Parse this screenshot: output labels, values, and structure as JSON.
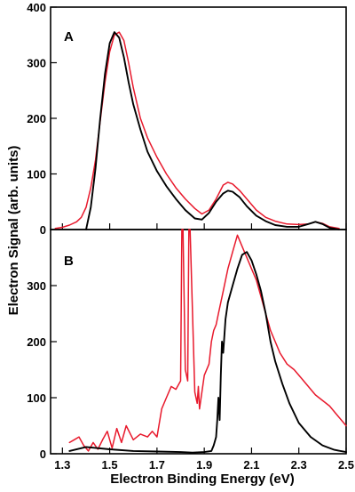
{
  "colors": {
    "experiment": "#e8192c",
    "simulation": "#000000"
  },
  "chart_data": [
    {
      "type": "line",
      "panel_label": "A",
      "xlabel": "Electron Binding Energy (eV)",
      "ylabel": "Electron Signal (arb. units)",
      "xlim": [
        1.25,
        2.5
      ],
      "ylim": [
        0,
        400
      ],
      "yticks": [
        0,
        100,
        200,
        300,
        400
      ],
      "ytick_labels": [
        "0",
        "100",
        "200",
        "300",
        "400"
      ],
      "grid": false,
      "series": [
        {
          "color": "#e8192c",
          "x": [
            1.27,
            1.3,
            1.33,
            1.36,
            1.38,
            1.4,
            1.42,
            1.44,
            1.46,
            1.48,
            1.5,
            1.52,
            1.54,
            1.56,
            1.58,
            1.6,
            1.63,
            1.66,
            1.7,
            1.74,
            1.78,
            1.82,
            1.86,
            1.89,
            1.92,
            1.95,
            1.98,
            2.0,
            2.02,
            2.05,
            2.08,
            2.12,
            2.16,
            2.2,
            2.25,
            2.3,
            2.34,
            2.37,
            2.4,
            2.43,
            2.47
          ],
          "y": [
            2,
            4,
            8,
            14,
            22,
            40,
            75,
            125,
            195,
            265,
            320,
            350,
            355,
            340,
            300,
            255,
            200,
            165,
            130,
            100,
            75,
            55,
            38,
            28,
            35,
            55,
            80,
            85,
            82,
            70,
            55,
            35,
            22,
            15,
            10,
            9,
            10,
            14,
            11,
            5,
            2
          ]
        },
        {
          "color": "#000000",
          "x": [
            1.4,
            1.42,
            1.44,
            1.46,
            1.48,
            1.5,
            1.52,
            1.54,
            1.56,
            1.58,
            1.6,
            1.63,
            1.66,
            1.7,
            1.74,
            1.78,
            1.82,
            1.86,
            1.89,
            1.92,
            1.95,
            1.98,
            2.0,
            2.02,
            2.05,
            2.08,
            2.12,
            2.16,
            2.2,
            2.25,
            2.3,
            2.34,
            2.37,
            2.4,
            2.43,
            2.47
          ],
          "y": [
            0,
            40,
            110,
            200,
            280,
            335,
            355,
            345,
            310,
            265,
            225,
            180,
            140,
            105,
            78,
            55,
            35,
            20,
            18,
            30,
            50,
            65,
            70,
            68,
            58,
            42,
            25,
            15,
            8,
            5,
            5,
            10,
            14,
            10,
            3,
            0
          ]
        }
      ]
    },
    {
      "type": "line",
      "panel_label": "B",
      "xlabel": "Electron Binding Energy (eV)",
      "ylabel": "Electron Signal (arb. units)",
      "xlim": [
        1.25,
        2.5
      ],
      "ylim": [
        0,
        400
      ],
      "yticks": [
        0,
        100,
        200,
        300
      ],
      "ytick_labels": [
        "0",
        "100",
        "200",
        "300"
      ],
      "xticks": [
        1.3,
        1.5,
        1.7,
        1.9,
        2.1,
        2.3,
        2.5
      ],
      "xtick_labels": [
        "1.3",
        "1.5",
        "1.7",
        "1.9",
        "2.1",
        "2.3",
        "2.5"
      ],
      "grid": false,
      "series": [
        {
          "color": "#e8192c",
          "x": [
            1.33,
            1.35,
            1.37,
            1.39,
            1.41,
            1.43,
            1.45,
            1.47,
            1.49,
            1.51,
            1.53,
            1.55,
            1.57,
            1.6,
            1.63,
            1.66,
            1.68,
            1.7,
            1.72,
            1.74,
            1.76,
            1.78,
            1.8,
            1.805,
            1.81,
            1.82,
            1.83,
            1.835,
            1.84,
            1.86,
            1.87,
            1.875,
            1.88,
            1.9,
            1.92,
            1.93,
            1.94,
            1.95,
            1.96,
            1.98,
            2.0,
            2.02,
            2.04,
            2.06,
            2.08,
            2.1,
            2.12,
            2.14,
            2.16,
            2.18,
            2.2,
            2.22,
            2.25,
            2.28,
            2.31,
            2.34,
            2.37,
            2.4,
            2.43,
            2.46,
            2.48,
            2.5
          ],
          "y": [
            20,
            25,
            30,
            15,
            5,
            20,
            8,
            25,
            40,
            10,
            45,
            20,
            50,
            25,
            35,
            30,
            40,
            30,
            80,
            100,
            120,
            115,
            130,
            400,
            400,
            150,
            130,
            400,
            400,
            110,
            90,
            120,
            80,
            140,
            160,
            200,
            220,
            230,
            250,
            290,
            330,
            360,
            390,
            370,
            350,
            330,
            310,
            280,
            250,
            220,
            200,
            180,
            160,
            150,
            135,
            120,
            105,
            95,
            85,
            70,
            60,
            50
          ]
        },
        {
          "color": "#000000",
          "x": [
            1.33,
            1.4,
            1.5,
            1.6,
            1.7,
            1.8,
            1.85,
            1.9,
            1.93,
            1.94,
            1.95,
            1.955,
            1.96,
            1.965,
            1.97,
            1.975,
            1.98,
            1.99,
            2.0,
            2.02,
            2.04,
            2.06,
            2.08,
            2.1,
            2.12,
            2.14,
            2.16,
            2.18,
            2.2,
            2.23,
            2.26,
            2.3,
            2.35,
            2.4,
            2.45,
            2.5
          ],
          "y": [
            5,
            12,
            8,
            5,
            4,
            3,
            2,
            3,
            5,
            15,
            30,
            60,
            100,
            60,
            140,
            200,
            180,
            240,
            270,
            300,
            330,
            355,
            360,
            345,
            320,
            290,
            250,
            200,
            165,
            125,
            90,
            55,
            30,
            15,
            7,
            3
          ]
        }
      ]
    }
  ]
}
